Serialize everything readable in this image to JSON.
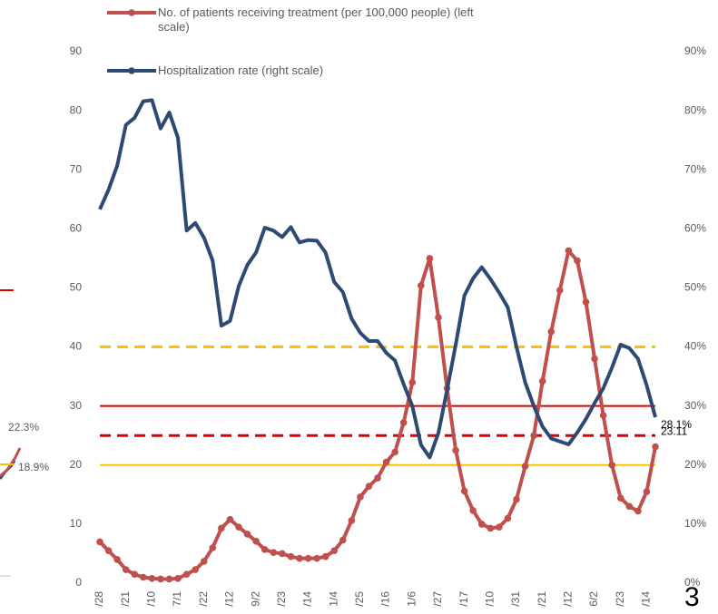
{
  "chart_data": {
    "type": "line",
    "categories": [
      "/28",
      null,
      null,
      "/21",
      null,
      null,
      "/10",
      null,
      null,
      "7/1",
      null,
      null,
      "/22",
      null,
      null,
      "/12",
      null,
      null,
      "9/2",
      null,
      null,
      "/23",
      null,
      null,
      "/14",
      null,
      null,
      "1/4",
      null,
      null,
      "/25",
      null,
      null,
      "/16",
      null,
      null,
      "1/6",
      null,
      null,
      "/27",
      null,
      null,
      "/17",
      null,
      null,
      "/10",
      null,
      null,
      "/31",
      null,
      null,
      "/21",
      null,
      null,
      "/12",
      null,
      null,
      "6/2",
      null,
      null,
      "/23",
      null,
      null,
      "/14",
      null
    ],
    "series": [
      {
        "name": "No. of patients receiving treatment (per 100,000 people) (left scale)",
        "color": "#c0504d",
        "axis": "y",
        "values": [
          7,
          5.5,
          4,
          2.3,
          1.5,
          1.0,
          0.8,
          0.7,
          0.7,
          0.8,
          1.5,
          2.3,
          3.7,
          6,
          9.3,
          10.8,
          9.5,
          8.3,
          7.1,
          5.7,
          5.2,
          5,
          4.5,
          4.2,
          4.2,
          4.2,
          4.5,
          5.5,
          7.3,
          10.6,
          14.6,
          16.4,
          17.8,
          20.5,
          22.2,
          27.2,
          34,
          50.4,
          55,
          45,
          33,
          22.5,
          15.6,
          12.3,
          10,
          9.3,
          9.5,
          11,
          14.2,
          19.8,
          25,
          34.2,
          42.6,
          49.6,
          56.3,
          54.6,
          47.6,
          38,
          28.4,
          20,
          14.4,
          13,
          12.2,
          15.5,
          23.11
        ],
        "value_labels": [
          null,
          null,
          null,
          null,
          null,
          null,
          null,
          null,
          null,
          null,
          null,
          null,
          null,
          null,
          null,
          null,
          null,
          null,
          null,
          null,
          null,
          null,
          null,
          null,
          null,
          null,
          null,
          null,
          null,
          null,
          null,
          null,
          null,
          null,
          null,
          null,
          null,
          null,
          null,
          null,
          null,
          null,
          null,
          null,
          null,
          null,
          null,
          null,
          null,
          null,
          null,
          null,
          null,
          null,
          null,
          null,
          null,
          null,
          null,
          null,
          null,
          null,
          null,
          null,
          "23.11"
        ]
      },
      {
        "name": "Hospitalization rate (right scale)",
        "color": "#2e4a72",
        "axis": "y2",
        "values": [
          63.3,
          66.6,
          70.7,
          77.6,
          78.8,
          81.6,
          81.8,
          77,
          79.7,
          75.4,
          59.7,
          61,
          58.5,
          54.6,
          43.6,
          44.4,
          50.3,
          53.9,
          56,
          60.2,
          59.7,
          58.6,
          60.3,
          57.7,
          58.1,
          58,
          56,
          51,
          49.3,
          44.8,
          42.4,
          41,
          41,
          39,
          37.7,
          33.7,
          30,
          23.4,
          21.3,
          25.4,
          32.7,
          40.4,
          48.7,
          51.6,
          53.5,
          51.5,
          49.2,
          46.7,
          40,
          34,
          30,
          26.5,
          24.5,
          24,
          23.5,
          25.5,
          27.8,
          30.5,
          33,
          36.5,
          40.4,
          39.8,
          38,
          33.5,
          28.1
        ],
        "value_labels": [
          null,
          null,
          null,
          null,
          null,
          null,
          null,
          null,
          null,
          null,
          null,
          null,
          null,
          null,
          null,
          null,
          null,
          null,
          null,
          null,
          null,
          null,
          null,
          null,
          null,
          null,
          null,
          null,
          null,
          null,
          null,
          null,
          null,
          null,
          null,
          null,
          null,
          null,
          null,
          null,
          null,
          null,
          null,
          null,
          null,
          null,
          null,
          null,
          null,
          null,
          null,
          null,
          null,
          null,
          null,
          null,
          null,
          null,
          null,
          null,
          null,
          null,
          null,
          null,
          "28.1%"
        ]
      }
    ],
    "ylim": [
      0,
      90
    ],
    "yticks": [
      0,
      10,
      20,
      30,
      40,
      50,
      60,
      70,
      80,
      90
    ],
    "y2lim": [
      0,
      90
    ],
    "y2ticks": [
      {
        "value": 0,
        "label": "0%"
      },
      {
        "value": 10,
        "label": "10%"
      },
      {
        "value": 20,
        "label": "20%"
      },
      {
        "value": 30,
        "label": "30%"
      },
      {
        "value": 40,
        "label": "40%"
      },
      {
        "value": 50,
        "label": "50%"
      },
      {
        "value": 60,
        "label": "60%"
      },
      {
        "value": 70,
        "label": "70%"
      },
      {
        "value": 80,
        "label": "80%"
      },
      {
        "value": 90,
        "label": "90%"
      }
    ],
    "reference_lines": [
      {
        "value": 40,
        "color": "#ffc000",
        "dashed": true
      },
      {
        "value": 30,
        "color": "#e00000",
        "dashed": false
      },
      {
        "value": 25,
        "color": "#e00000",
        "dashed": true
      },
      {
        "value": 20,
        "color": "#ffc000",
        "dashed": false
      }
    ],
    "annotations": [
      "22.3%",
      "18.9%",
      "3"
    ]
  }
}
